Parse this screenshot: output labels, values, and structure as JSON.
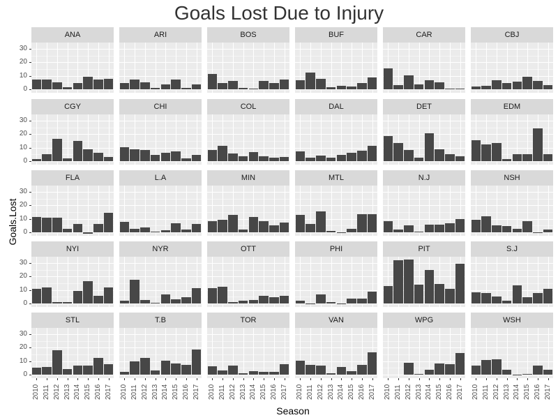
{
  "chart_data": {
    "type": "bar",
    "title": "Goals Lost Due to Injury",
    "xlabel": "Season",
    "ylabel": "Goals.Lost",
    "ylim": [
      -2.6,
      34.7
    ],
    "yticks": [
      0,
      10,
      20,
      30
    ],
    "categories": [
      "2010",
      "2011",
      "2012",
      "2013",
      "2014",
      "2015",
      "2016",
      "2017"
    ],
    "facet_layout": {
      "ncol": 6,
      "nrow": 5
    },
    "grid": true,
    "legend": "none",
    "panels": [
      {
        "name": "ANA",
        "values": [
          7.0,
          7.4,
          5.3,
          1.7,
          4.8,
          9.1,
          7.4,
          7.9
        ]
      },
      {
        "name": "ARI",
        "values": [
          4.5,
          7.0,
          5.3,
          1.2,
          3.4,
          7.4,
          1.2,
          3.8
        ]
      },
      {
        "name": "BOS",
        "values": [
          11.6,
          4.5,
          6.4,
          1.2,
          0.3,
          6.0,
          4.5,
          7.4
        ]
      },
      {
        "name": "BUF",
        "values": [
          6.9,
          12.6,
          7.9,
          1.7,
          2.8,
          2.2,
          4.5,
          8.6
        ]
      },
      {
        "name": "CAR",
        "values": [
          15.7,
          3.3,
          10.5,
          3.8,
          6.9,
          5.3,
          0.7,
          0.3
        ]
      },
      {
        "name": "CBJ",
        "values": [
          2.2,
          2.8,
          6.9,
          4.8,
          5.9,
          9.5,
          6.4,
          3.3
        ]
      },
      {
        "name": "CGY",
        "values": [
          1.4,
          5.0,
          16.4,
          1.9,
          14.8,
          8.6,
          6.0,
          2.9
        ]
      },
      {
        "name": "CHI",
        "values": [
          10.2,
          8.6,
          8.1,
          4.5,
          6.0,
          7.1,
          1.9,
          4.5
        ]
      },
      {
        "name": "COL",
        "values": [
          8.1,
          11.2,
          5.5,
          3.4,
          6.6,
          3.4,
          2.4,
          2.9
        ]
      },
      {
        "name": "DAL",
        "values": [
          7.1,
          2.4,
          4.0,
          2.4,
          4.5,
          6.0,
          7.6,
          11.2
        ]
      },
      {
        "name": "DET",
        "values": [
          18.4,
          13.3,
          8.1,
          2.4,
          20.5,
          8.6,
          5.0,
          3.4
        ]
      },
      {
        "name": "EDM",
        "values": [
          15.3,
          12.2,
          13.3,
          1.4,
          5.0,
          5.0,
          24.1,
          5.0
        ]
      },
      {
        "name": "FLA",
        "values": [
          11.2,
          10.7,
          10.7,
          2.4,
          6.0,
          -1.0,
          6.0,
          14.3
        ]
      },
      {
        "name": "L.A",
        "values": [
          7.6,
          2.4,
          3.4,
          0.3,
          1.4,
          6.6,
          1.9,
          6.0
        ]
      },
      {
        "name": "MIN",
        "values": [
          8.1,
          9.1,
          12.8,
          1.9,
          11.2,
          8.1,
          5.0,
          7.1
        ]
      },
      {
        "name": "MTL",
        "values": [
          12.8,
          6.0,
          15.3,
          0.9,
          0.2,
          2.4,
          13.3,
          13.3
        ]
      },
      {
        "name": "N.J",
        "values": [
          8.1,
          1.9,
          5.0,
          0.3,
          5.5,
          5.5,
          6.6,
          9.7
        ]
      },
      {
        "name": "NSH",
        "values": [
          9.1,
          11.7,
          5.0,
          4.5,
          2.4,
          8.1,
          0.2,
          1.9
        ]
      },
      {
        "name": "NYI",
        "values": [
          10.7,
          11.7,
          0.9,
          0.9,
          9.1,
          16.4,
          5.5,
          11.7
        ]
      },
      {
        "name": "NYR",
        "values": [
          1.9,
          17.4,
          2.4,
          0.3,
          6.6,
          2.9,
          4.5,
          11.2
        ]
      },
      {
        "name": "OTT",
        "values": [
          11.2,
          12.2,
          0.9,
          1.9,
          2.4,
          5.5,
          4.5,
          5.5
        ]
      },
      {
        "name": "PHI",
        "values": [
          1.9,
          0.2,
          6.6,
          0.9,
          0.2,
          3.4,
          3.4,
          8.6
        ]
      },
      {
        "name": "PIT",
        "values": [
          12.8,
          31.9,
          32.4,
          13.8,
          24.7,
          14.3,
          10.7,
          29.3
        ]
      },
      {
        "name": "S.J",
        "values": [
          8.1,
          7.6,
          5.0,
          1.9,
          13.3,
          4.5,
          7.6,
          10.7
        ]
      },
      {
        "name": "STL",
        "values": [
          5.4,
          5.9,
          18.1,
          3.9,
          6.9,
          6.9,
          12.5,
          8.0
        ]
      },
      {
        "name": "T.B",
        "values": [
          1.9,
          10.0,
          12.5,
          2.9,
          10.5,
          8.5,
          7.5,
          18.6
        ]
      },
      {
        "name": "TOR",
        "values": [
          6.4,
          2.9,
          6.9,
          0.8,
          2.4,
          1.9,
          1.9,
          8.0
        ]
      },
      {
        "name": "VAN",
        "values": [
          10.5,
          7.5,
          6.9,
          0.8,
          5.9,
          2.4,
          7.5,
          16.6
        ]
      },
      {
        "name": "WPG",
        "values": [
          null,
          null,
          9.0,
          0.3,
          3.4,
          8.5,
          8.0,
          16.1
        ]
      },
      {
        "name": "WSH",
        "values": [
          6.9,
          11.0,
          11.5,
          3.4,
          -0.3,
          0.3,
          6.9,
          3.4
        ]
      }
    ]
  },
  "colors": {
    "bar": "#474747",
    "panel_bg": "#ebebeb",
    "strip_bg": "#d9d9d9",
    "grid": "#ffffff"
  }
}
